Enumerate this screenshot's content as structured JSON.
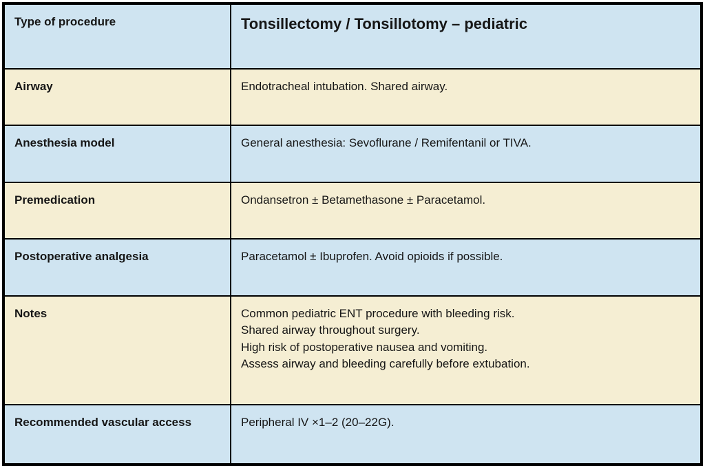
{
  "table": {
    "colors": {
      "row_blue": "#cfe4f1",
      "row_cream": "#f5eed3",
      "border": "#000000"
    },
    "rows": [
      {
        "label": "Type of procedure",
        "value": "Tonsillectomy / Tonsillotomy – pediatric",
        "tone": "blue"
      },
      {
        "label": "Airway",
        "value": "Endotracheal intubation. Shared airway.",
        "tone": "cream"
      },
      {
        "label": "Anesthesia model",
        "value": "General anesthesia: Sevoflurane / Remifentanil or TIVA.",
        "tone": "blue"
      },
      {
        "label": "Premedication",
        "value": "Ondansetron ± Betamethasone ± Paracetamol.",
        "tone": "cream"
      },
      {
        "label": "Postoperative analgesia",
        "value": "Paracetamol ± Ibuprofen. Avoid opioids if possible.",
        "tone": "blue"
      },
      {
        "label": "Notes",
        "tone": "cream",
        "lines": [
          "Common pediatric ENT procedure with bleeding risk.",
          "Shared airway throughout surgery.",
          "High risk of postoperative nausea and vomiting.",
          "Assess airway and bleeding carefully before extubation."
        ]
      },
      {
        "label": "Recommended vascular access",
        "value": "Peripheral IV ×1–2 (20–22G).",
        "tone": "blue"
      }
    ]
  }
}
